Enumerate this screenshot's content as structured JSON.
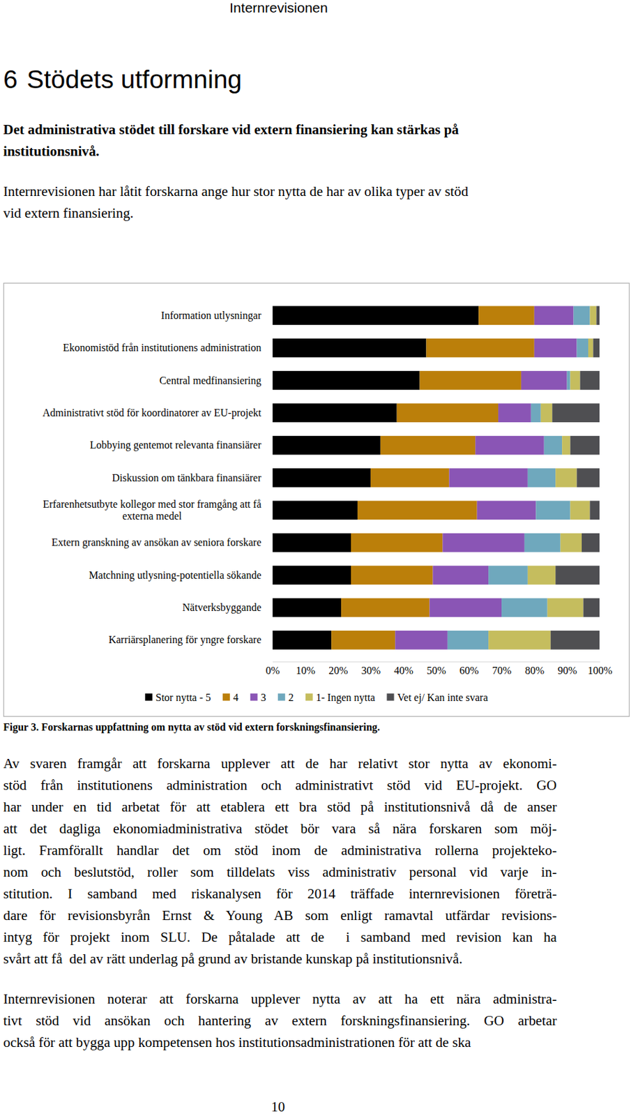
{
  "header": "Internrevisionen",
  "heading": {
    "number": "6",
    "text": "Stödets utformning"
  },
  "lead": [
    "Det administrativa stödet till forskare vid extern finansiering kan stärkas på",
    "institutionsnivå."
  ],
  "intro": [
    "Internrevisionen har låtit forskarna ange hur stor nytta de har av olika typer av stöd",
    "vid extern finansiering."
  ],
  "chart_data": {
    "type": "bar",
    "orientation": "horizontal",
    "stacked": true,
    "legend": "bottom",
    "categories": [
      "Information utlysningar",
      "Ekonomistöd från institutionens administration",
      "Central medfinansiering",
      "Administrativt stöd för koordinatorer av EU-projekt",
      "Lobbying gentemot relevanta finansiärer",
      "Diskussion om tänkbara finansiärer",
      "Erfarenhetsutbyte kollegor med stor framgång att få externa medel",
      "Extern granskning av ansökan av seniora forskare",
      "Matchning utlysning-potentiella sökande",
      "Nätverksbyggande",
      "Karriärsplanering för yngre forskare"
    ],
    "series": [
      {
        "name": "Stor nytta - 5",
        "color": "#000000",
        "values": [
          63,
          47,
          45,
          38,
          33,
          30,
          26,
          24,
          24,
          21,
          18
        ]
      },
      {
        "name": "4",
        "color": "#bb7f0a",
        "values": [
          17,
          33,
          31,
          31,
          29,
          24,
          36.5,
          28,
          25,
          27,
          19.5
        ]
      },
      {
        "name": "3",
        "color": "#8a55b5",
        "values": [
          12,
          13,
          14,
          10,
          21,
          24,
          18,
          25,
          17,
          22,
          16
        ]
      },
      {
        "name": "2",
        "color": "#6fa8bd",
        "values": [
          5,
          3.5,
          1,
          3,
          5.5,
          8.5,
          10.5,
          11,
          12,
          14,
          12.5
        ]
      },
      {
        "name": "1- Ingen nytta",
        "color": "#c5bd5e",
        "values": [
          2,
          1.5,
          3,
          3.5,
          2.5,
          6.5,
          6,
          6.5,
          8.5,
          11,
          19
        ]
      },
      {
        "name": "Vet ej/ Kan inte svara",
        "color": "#4f4f52",
        "values": [
          1,
          2,
          6,
          14.5,
          9,
          7,
          3,
          5.5,
          13.5,
          5,
          15
        ]
      }
    ],
    "xlim": [
      0,
      100
    ],
    "xticks": [
      {
        "value": 0,
        "label": "0%"
      },
      {
        "value": 10,
        "label": "10%"
      },
      {
        "value": 20,
        "label": "20%"
      },
      {
        "value": 30,
        "label": "30%"
      },
      {
        "value": 40,
        "label": "40%"
      },
      {
        "value": 50,
        "label": "50%"
      },
      {
        "value": 60,
        "label": "60%"
      },
      {
        "value": 70,
        "label": "70%"
      },
      {
        "value": 80,
        "label": "80%"
      },
      {
        "value": 90,
        "label": "90%"
      },
      {
        "value": 100,
        "label": "100%"
      }
    ]
  },
  "caption": "Figur 3. Forskarnas uppfattning om nytta av stöd vid extern forskningsfinansiering.",
  "body": [
    [
      "Av svaren framgår att forskarna upplever att de har relativt stor nytta av ekonomi-",
      "stöd från institutionens administration och administrativt stöd vid EU-projekt. GO",
      "har under en tid arbetat för att etablera ett bra stöd på institutionsnivå då de anser",
      "att det dagliga ekonomiadministrativa stödet bör vara så nära forskaren som möj-",
      "ligt. Framförallt handlar det om stöd inom de administrativa rollerna projekteko-",
      "nom och beslutstöd, roller som tilldelats viss administrativ personal vid varje in-",
      "stitution. I samband med riskanalysen för 2014 träffade internrevisionen företrä-",
      "dare för revisionsbyrån Ernst & Young AB som enligt ramavtal utfärdar revisions-",
      "intyg för projekt inom SLU. De påtalade att de  i samband med revision kan ha",
      "svårt att få  del av rätt underlag på grund av bristande kunskap på institutionsnivå."
    ],
    [
      "Internrevisionen noterar att forskarna upplever nytta av att ha ett nära administra-",
      "tivt stöd vid ansökan och hantering av extern forskningsfinansiering. GO arbetar",
      "också för att bygga upp kompetensen hos institutionsadministrationen för att de ska"
    ]
  ],
  "page_number": "10"
}
